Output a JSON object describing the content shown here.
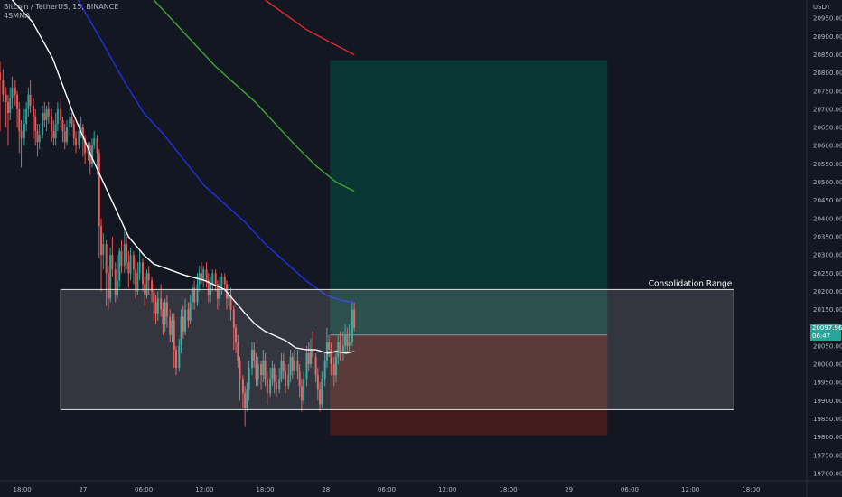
{
  "header": {
    "symbol_line": "Bitcoin / TetherUS, 15, BINANCE",
    "indicator_line": "4SMMA"
  },
  "price_axis": {
    "currency": "USDT",
    "last_price": "20097.96",
    "countdown": "06:47"
  },
  "colors": {
    "background": "#131722",
    "axis_border": "#2a2e39",
    "text": "#b2b5be",
    "up_candle": "#26a69a",
    "down_candle": "#ef5350",
    "smma_white": "#ffffff",
    "smma_blue": "#2130e0",
    "smma_green": "#3ca833",
    "smma_red": "#e02b2b",
    "target_zone": "#0a3a35",
    "stop_zone": "#4a1c1c",
    "range_box": "rgba(200,200,200,0.18)"
  },
  "chart_data": {
    "type": "candlestick",
    "ylabel": "USDT",
    "ylim": [
      19680,
      21000
    ],
    "y_ticks": [
      19700,
      19750,
      19800,
      19850,
      19900,
      19950,
      20000,
      20050,
      20100,
      20150,
      20200,
      20250,
      20300,
      20350,
      20400,
      20450,
      20500,
      20550,
      20600,
      20650,
      20700,
      20750,
      20800,
      20850,
      20900,
      20950
    ],
    "y_tick_labels": [
      "19700.00",
      "19750.00",
      "19800.00",
      "19850.00",
      "19900.00",
      "19950.00",
      "20000.00",
      "20050.00",
      "20100.00",
      "20150.00",
      "20200.00",
      "20250.00",
      "20300.00",
      "20350.00",
      "20400.00",
      "20450.00",
      "20500.00",
      "20550.00",
      "20600.00",
      "20650.00",
      "20700.00",
      "20750.00",
      "20800.00",
      "20850.00",
      "20900.00",
      "20950.00"
    ],
    "x_tick_labels": [
      "18:00",
      "27",
      "06:00",
      "12:00",
      "18:00",
      "28",
      "06:00",
      "12:00",
      "18:00",
      "29",
      "06:00",
      "12:00",
      "18:00"
    ],
    "x_tick_hours": [
      -6,
      0,
      6,
      12,
      18,
      24,
      30,
      36,
      42,
      48,
      54,
      60,
      66
    ],
    "xlim_hours": [
      -8.2,
      71.5
    ],
    "last_price": 20097.96,
    "annotation": "Consolidation Range",
    "consolidation_range": {
      "start_hour": -2.2,
      "end_hour": 64.3,
      "low": 19875,
      "high": 20205
    },
    "position": {
      "start_hour": 24.4,
      "end_hour": 51.8,
      "entry": 20080,
      "target": 20835,
      "stop": 19805
    },
    "smma_lines": [
      {
        "color": "#ffffff",
        "points": [
          [
            -7,
            21000
          ],
          [
            -5,
            20940
          ],
          [
            -3,
            20840
          ],
          [
            -1,
            20690
          ],
          [
            1,
            20560
          ],
          [
            3,
            20440
          ],
          [
            4.5,
            20350
          ],
          [
            6,
            20300
          ],
          [
            7,
            20275
          ],
          [
            8,
            20265
          ],
          [
            10,
            20245
          ],
          [
            12,
            20230
          ],
          [
            14,
            20205
          ],
          [
            16,
            20140
          ],
          [
            17,
            20110
          ],
          [
            18,
            20090
          ],
          [
            20,
            20065
          ],
          [
            21,
            20045
          ],
          [
            22,
            20040
          ],
          [
            23,
            20040
          ],
          [
            24.2,
            20030
          ],
          [
            25,
            20035
          ],
          [
            26,
            20030
          ],
          [
            26.8,
            20035
          ]
        ]
      },
      {
        "color": "#2130e0",
        "points": [
          [
            -0.5,
            21000
          ],
          [
            2,
            20880
          ],
          [
            4,
            20780
          ],
          [
            6,
            20690
          ],
          [
            8,
            20630
          ],
          [
            10,
            20560
          ],
          [
            12,
            20490
          ],
          [
            14,
            20440
          ],
          [
            16,
            20390
          ],
          [
            18,
            20330
          ],
          [
            20,
            20280
          ],
          [
            22,
            20230
          ],
          [
            24,
            20190
          ],
          [
            25.5,
            20175
          ],
          [
            26.8,
            20170
          ]
        ]
      },
      {
        "color": "#3ca833",
        "points": [
          [
            7,
            21000
          ],
          [
            9,
            20940
          ],
          [
            11,
            20880
          ],
          [
            13,
            20820
          ],
          [
            15,
            20770
          ],
          [
            17,
            20720
          ],
          [
            19,
            20660
          ],
          [
            21,
            20600
          ],
          [
            23,
            20545
          ],
          [
            25,
            20500
          ],
          [
            26.8,
            20475
          ]
        ]
      },
      {
        "color": "#e02b2b",
        "points": [
          [
            18,
            21000
          ],
          [
            20,
            20960
          ],
          [
            22,
            20920
          ],
          [
            24,
            20890
          ],
          [
            26.8,
            20850
          ]
        ]
      }
    ],
    "candles": [
      [
        -8.2,
        20800,
        20780,
        20830,
        20640
      ],
      [
        -7.9,
        20780,
        20740,
        20810,
        20720
      ],
      [
        -7.6,
        20740,
        20720,
        20760,
        20650
      ],
      [
        -7.4,
        20720,
        20690,
        20740,
        20600
      ],
      [
        -7.2,
        20690,
        20730,
        20760,
        20670
      ],
      [
        -7.0,
        20730,
        20760,
        20790,
        20700
      ],
      [
        -6.7,
        20760,
        20740,
        20780,
        20710
      ],
      [
        -6.5,
        20740,
        20700,
        20750,
        20650
      ],
      [
        -6.3,
        20700,
        20640,
        20720,
        20580
      ],
      [
        -6.1,
        20640,
        20620,
        20670,
        20540
      ],
      [
        -5.8,
        20620,
        20660,
        20700,
        20600
      ],
      [
        -5.6,
        20660,
        20700,
        20720,
        20640
      ],
      [
        -5.4,
        20700,
        20740,
        20760,
        20680
      ],
      [
        -5.2,
        20740,
        20710,
        20780,
        20690
      ],
      [
        -4.9,
        20710,
        20680,
        20730,
        20620
      ],
      [
        -4.7,
        20680,
        20640,
        20700,
        20600
      ],
      [
        -4.5,
        20640,
        20610,
        20660,
        20570
      ],
      [
        -4.3,
        20610,
        20630,
        20660,
        20590
      ],
      [
        -4.0,
        20630,
        20690,
        20710,
        20620
      ],
      [
        -3.8,
        20690,
        20670,
        20720,
        20650
      ],
      [
        -3.6,
        20670,
        20700,
        20710,
        20640
      ],
      [
        -3.4,
        20700,
        20680,
        20720,
        20660
      ],
      [
        -3.1,
        20680,
        20640,
        20700,
        20610
      ],
      [
        -2.9,
        20640,
        20620,
        20670,
        20600
      ],
      [
        -2.7,
        20620,
        20660,
        20690,
        20600
      ],
      [
        -2.5,
        20660,
        20700,
        20720,
        20640
      ],
      [
        -2.2,
        20700,
        20670,
        20730,
        20650
      ],
      [
        -2.0,
        20670,
        20640,
        20680,
        20610
      ],
      [
        -1.8,
        20640,
        20610,
        20660,
        20590
      ],
      [
        -1.6,
        20610,
        20650,
        20670,
        20600
      ],
      [
        -1.3,
        20650,
        20680,
        20700,
        20630
      ],
      [
        -1.1,
        20680,
        20660,
        20690,
        20650
      ],
      [
        -0.9,
        20660,
        20620,
        20670,
        20600
      ],
      [
        -0.7,
        20620,
        20600,
        20640,
        20580
      ],
      [
        -0.4,
        20600,
        20640,
        20660,
        20590
      ],
      [
        -0.2,
        20640,
        20650,
        20680,
        20620
      ],
      [
        0.0,
        20650,
        20620,
        20660,
        20570
      ],
      [
        0.2,
        20620,
        20580,
        20630,
        20550
      ],
      [
        0.5,
        20580,
        20600,
        20610,
        20560
      ],
      [
        0.7,
        20600,
        20550,
        20610,
        20520
      ],
      [
        0.9,
        20550,
        20600,
        20620,
        20540
      ],
      [
        1.1,
        20600,
        20620,
        20640,
        20590
      ],
      [
        1.4,
        20620,
        20580,
        20630,
        20520
      ],
      [
        1.6,
        20580,
        20380,
        20590,
        20290
      ],
      [
        1.8,
        20380,
        20300,
        20400,
        20200
      ],
      [
        2.0,
        20300,
        20330,
        20360,
        20260
      ],
      [
        2.3,
        20330,
        20250,
        20340,
        20160
      ],
      [
        2.5,
        20250,
        20180,
        20270,
        20150
      ],
      [
        2.7,
        20180,
        20300,
        20320,
        20170
      ],
      [
        2.9,
        20300,
        20260,
        20350,
        20240
      ],
      [
        3.2,
        20260,
        20190,
        20280,
        20170
      ],
      [
        3.4,
        20190,
        20230,
        20300,
        20180
      ],
      [
        3.6,
        20230,
        20310,
        20320,
        20210
      ],
      [
        3.8,
        20310,
        20270,
        20340,
        20250
      ],
      [
        4.1,
        20270,
        20330,
        20370,
        20250
      ],
      [
        4.3,
        20330,
        20280,
        20350,
        20260
      ],
      [
        4.5,
        20280,
        20250,
        20310,
        20210
      ],
      [
        4.7,
        20250,
        20300,
        20320,
        20230
      ],
      [
        5.0,
        20300,
        20260,
        20310,
        20220
      ],
      [
        5.2,
        20260,
        20200,
        20290,
        20180
      ],
      [
        5.4,
        20200,
        20250,
        20280,
        20190
      ],
      [
        5.6,
        20250,
        20280,
        20310,
        20230
      ],
      [
        5.9,
        20280,
        20220,
        20290,
        20200
      ],
      [
        6.1,
        20220,
        20190,
        20240,
        20160
      ],
      [
        6.3,
        20190,
        20250,
        20260,
        20180
      ],
      [
        6.5,
        20250,
        20230,
        20270,
        20190
      ],
      [
        6.8,
        20230,
        20200,
        20240,
        20170
      ],
      [
        7.0,
        20200,
        20170,
        20220,
        20120
      ],
      [
        7.2,
        20170,
        20140,
        20190,
        20110
      ],
      [
        7.4,
        20140,
        20180,
        20200,
        20120
      ],
      [
        7.7,
        20180,
        20150,
        20220,
        20130
      ],
      [
        7.9,
        20150,
        20110,
        20170,
        20080
      ],
      [
        8.1,
        20110,
        20170,
        20180,
        20090
      ],
      [
        8.3,
        20170,
        20130,
        20190,
        20100
      ],
      [
        8.6,
        20130,
        20080,
        20150,
        20060
      ],
      [
        8.8,
        20080,
        20120,
        20140,
        20060
      ],
      [
        9.0,
        20120,
        20040,
        20140,
        19990
      ],
      [
        9.2,
        20040,
        19990,
        20050,
        19970
      ],
      [
        9.5,
        19990,
        20050,
        20070,
        19980
      ],
      [
        9.7,
        20050,
        20130,
        20150,
        20030
      ],
      [
        9.9,
        20130,
        20090,
        20160,
        20070
      ],
      [
        10.1,
        20090,
        20150,
        20180,
        20080
      ],
      [
        10.4,
        20150,
        20120,
        20170,
        20100
      ],
      [
        10.6,
        20120,
        20170,
        20190,
        20110
      ],
      [
        10.8,
        20170,
        20210,
        20220,
        20150
      ],
      [
        11.0,
        20210,
        20170,
        20230,
        20150
      ],
      [
        11.3,
        20170,
        20220,
        20250,
        20160
      ],
      [
        11.5,
        20220,
        20250,
        20270,
        20200
      ],
      [
        11.7,
        20250,
        20230,
        20280,
        20220
      ],
      [
        11.9,
        20230,
        20260,
        20270,
        20210
      ],
      [
        12.2,
        20260,
        20230,
        20280,
        20210
      ],
      [
        12.4,
        20230,
        20190,
        20250,
        20170
      ],
      [
        12.6,
        20190,
        20220,
        20240,
        20170
      ],
      [
        12.8,
        20220,
        20250,
        20260,
        20200
      ],
      [
        13.1,
        20250,
        20220,
        20260,
        20200
      ],
      [
        13.3,
        20220,
        20180,
        20230,
        20150
      ],
      [
        13.5,
        20180,
        20210,
        20240,
        20160
      ],
      [
        13.7,
        20210,
        20240,
        20250,
        20190
      ],
      [
        14.0,
        20240,
        20220,
        20250,
        20200
      ],
      [
        14.2,
        20220,
        20180,
        20230,
        20150
      ],
      [
        14.4,
        20180,
        20190,
        20220,
        20160
      ],
      [
        14.6,
        20190,
        20150,
        20210,
        20120
      ],
      [
        14.9,
        20150,
        20100,
        20160,
        20040
      ],
      [
        15.1,
        20100,
        20060,
        20110,
        20030
      ],
      [
        15.3,
        20060,
        20010,
        20080,
        19990
      ],
      [
        15.5,
        20010,
        19960,
        20020,
        19900
      ],
      [
        15.8,
        19960,
        19920,
        19970,
        19880
      ],
      [
        16.0,
        19920,
        19880,
        19940,
        19830
      ],
      [
        16.2,
        19880,
        19930,
        19950,
        19870
      ],
      [
        16.4,
        19930,
        19990,
        20010,
        19900
      ],
      [
        16.7,
        19990,
        20040,
        20060,
        19970
      ],
      [
        16.9,
        20040,
        20010,
        20060,
        19990
      ],
      [
        17.1,
        20010,
        19960,
        20030,
        19940
      ],
      [
        17.3,
        19960,
        20000,
        20020,
        19940
      ],
      [
        17.6,
        20000,
        19970,
        20010,
        19930
      ],
      [
        17.8,
        19970,
        20010,
        20040,
        19950
      ],
      [
        18.0,
        20010,
        19960,
        20030,
        19940
      ],
      [
        18.2,
        19960,
        19920,
        19980,
        19890
      ],
      [
        18.5,
        19920,
        19960,
        19990,
        19910
      ],
      [
        18.7,
        19960,
        19990,
        20010,
        19940
      ],
      [
        18.9,
        19990,
        19950,
        20000,
        19920
      ],
      [
        19.1,
        19950,
        19930,
        19970,
        19910
      ],
      [
        19.4,
        19930,
        19960,
        19990,
        19920
      ],
      [
        19.6,
        19960,
        20010,
        20030,
        19950
      ],
      [
        19.8,
        20010,
        19980,
        20030,
        19960
      ],
      [
        20.0,
        19980,
        19940,
        20000,
        19920
      ],
      [
        20.3,
        19940,
        19970,
        20000,
        19930
      ],
      [
        20.5,
        19970,
        20020,
        20040,
        19950
      ],
      [
        20.7,
        20020,
        19980,
        20030,
        19960
      ],
      [
        20.9,
        19980,
        20010,
        20040,
        19970
      ],
      [
        21.2,
        20010,
        19980,
        20040,
        19960
      ],
      [
        21.4,
        19980,
        19940,
        20000,
        19910
      ],
      [
        21.6,
        19940,
        19900,
        19960,
        19870
      ],
      [
        21.8,
        19900,
        19960,
        19980,
        19890
      ],
      [
        22.1,
        19960,
        20030,
        20050,
        19940
      ],
      [
        22.3,
        20030,
        20000,
        20060,
        19980
      ],
      [
        22.5,
        20000,
        20040,
        20070,
        19990
      ],
      [
        22.7,
        20040,
        20020,
        20090,
        20000
      ],
      [
        23.0,
        20020,
        19970,
        20030,
        19950
      ],
      [
        23.2,
        19970,
        19930,
        19990,
        19900
      ],
      [
        23.4,
        19930,
        19890,
        19950,
        19870
      ],
      [
        23.6,
        19890,
        19960,
        19980,
        19880
      ],
      [
        23.9,
        19960,
        20010,
        20030,
        19940
      ],
      [
        24.1,
        20010,
        20060,
        20100,
        19990
      ],
      [
        24.3,
        20060,
        20040,
        20080,
        20020
      ],
      [
        24.5,
        20040,
        20000,
        20060,
        19970
      ],
      [
        24.8,
        20000,
        19970,
        20020,
        19940
      ],
      [
        25.0,
        19970,
        20020,
        20040,
        19950
      ],
      [
        25.2,
        20020,
        20060,
        20080,
        20000
      ],
      [
        25.4,
        20060,
        20030,
        20090,
        20010
      ],
      [
        25.7,
        20030,
        20050,
        20090,
        20010
      ],
      [
        25.9,
        20050,
        20080,
        20110,
        20030
      ],
      [
        26.1,
        20080,
        20050,
        20100,
        20030
      ],
      [
        26.3,
        20050,
        20060,
        20110,
        20030
      ],
      [
        26.6,
        20060,
        20150,
        20170,
        20050
      ],
      [
        26.8,
        20150,
        20100,
        20170,
        20090
      ]
    ]
  }
}
